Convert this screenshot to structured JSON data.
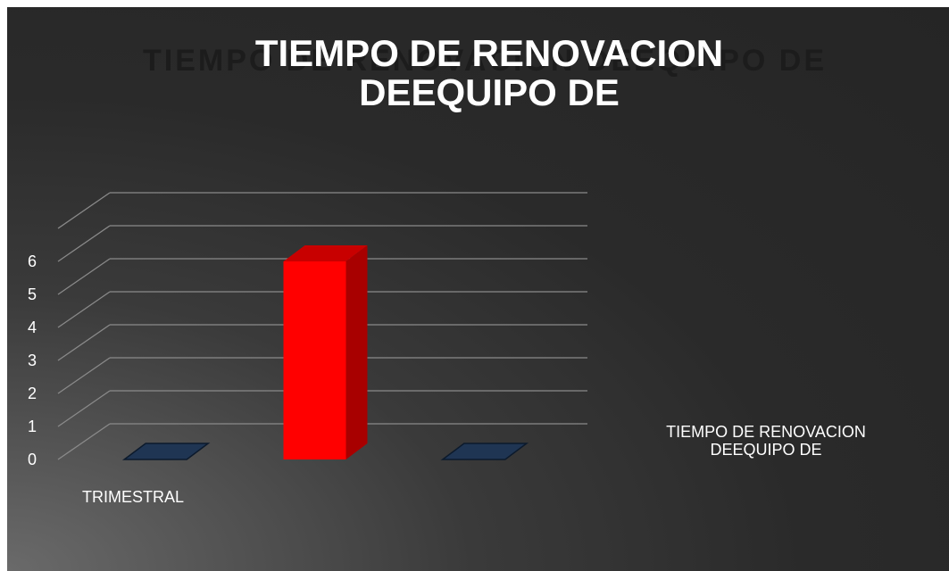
{
  "chart_data": {
    "type": "bar3d",
    "title": "TIEMPO DE RENOVACION DEEQUIPO DE",
    "categories": [
      "TRIMESTRAL",
      null,
      null
    ],
    "series": [
      {
        "name": "TIEMPO DE RENOVACION DEEQUIPO DE",
        "color": "#ff0000",
        "values": [
          0,
          6,
          0
        ]
      }
    ],
    "ylim": [
      0,
      7
    ],
    "yticks": [
      0,
      1,
      2,
      3,
      4,
      5,
      6
    ],
    "grid": true
  }
}
